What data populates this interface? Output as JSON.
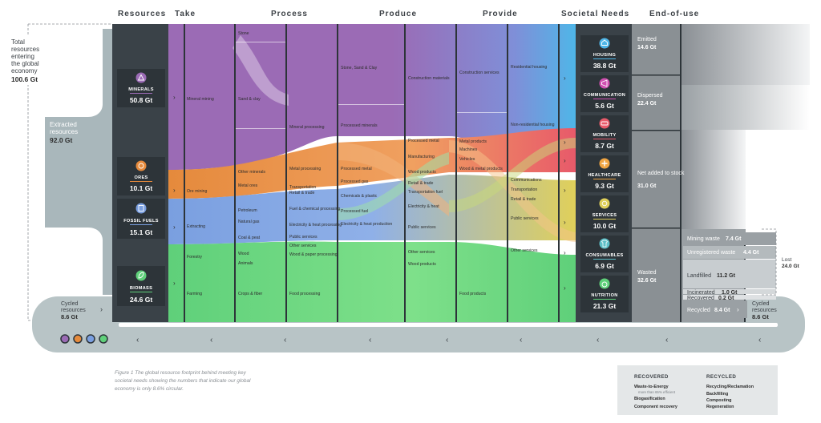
{
  "headers": [
    "Resources",
    "Take",
    "Process",
    "Produce",
    "Provide",
    "Societal Needs",
    "End-of-use"
  ],
  "total": {
    "lines": [
      "Total",
      "resources",
      "entering",
      "the global",
      "economy"
    ],
    "value": "100.6 Gt"
  },
  "extracted": {
    "lines": [
      "Extracted",
      "resources"
    ],
    "value": "92.0 Gt"
  },
  "cycled_left": {
    "lines": [
      "Cycled",
      "resources"
    ],
    "value": "8.6 Gt"
  },
  "cycled_right": {
    "lines": [
      "Cycled",
      "resources"
    ],
    "value": "8.6 Gt"
  },
  "resources": [
    {
      "name": "MINERALS",
      "value": "50.8 Gt",
      "color": "#9b6bb5"
    },
    {
      "name": "ORES",
      "value": "10.1 Gt",
      "color": "#e58a3c"
    },
    {
      "name": "FOSSIL FUELS",
      "value": "15.1 Gt",
      "color": "#7a9fe0"
    },
    {
      "name": "BIOMASS",
      "value": "24.6 Gt",
      "color": "#5fd07a"
    }
  ],
  "take_labels": [
    "Mineral mining",
    "Ore mining",
    "Extracting",
    "Forestry",
    "Farming"
  ],
  "process_inputs": [
    "Stone",
    "Sand & clay",
    "Other minerals",
    "Metal ores",
    "Petroleum",
    "Natural gas",
    "Coal & peat",
    "Wood",
    "Animals",
    "Crops & fiber"
  ],
  "process_labels": [
    "Mineral processing",
    "Metal processing",
    "Transportation",
    "Retail & trade",
    "Fuel & chemical processing",
    "Electricity & heat processing",
    "Public services",
    "Other services",
    "Wood & paper processing",
    "Food processing"
  ],
  "produce_inputs": [
    "Stone, Sand & Clay",
    "Processed minerals",
    "Processed metal",
    "Processed gas",
    "Chemicals & plastic",
    "Processed fuel",
    "Electricity & heat production"
  ],
  "produce_labels": [
    "Construction materials",
    "Processed metal",
    "Manufacturing",
    "Wood products",
    "Retail & trade",
    "Transportation fuel",
    "Electricity & heat",
    "Public services",
    "Other services",
    "Wood products"
  ],
  "provide_inputs": [
    "Construction services",
    "Metal products",
    "Machines",
    "Vehicles",
    "Wood & metal products",
    "Food products"
  ],
  "provide_labels": [
    "Residential housing",
    "Non-residential housing",
    "Communications",
    "Transportation",
    "Retail & trade",
    "Public services",
    "Other services"
  ],
  "needs": [
    {
      "name": "HOUSING",
      "value": "38.8 Gt",
      "color": "#4fb6e8"
    },
    {
      "name": "COMMUNICATION",
      "value": "5.6 Gt",
      "color": "#d04fb0"
    },
    {
      "name": "MOBILITY",
      "value": "8.7 Gt",
      "color": "#e85a6a"
    },
    {
      "name": "HEALTHCARE",
      "value": "9.3 Gt",
      "color": "#f0a542"
    },
    {
      "name": "SERVICES",
      "value": "10.0 Gt",
      "color": "#e0d05a"
    },
    {
      "name": "CONSUMABLES",
      "value": "6.9 Gt",
      "color": "#5ec0c8"
    },
    {
      "name": "NUTRITION",
      "value": "21.3 Gt",
      "color": "#5fd07a"
    }
  ],
  "end_of_use": [
    {
      "label": "Emitted",
      "value": "14.6 Gt"
    },
    {
      "label": "Dispersed",
      "value": "22.4 Gt"
    },
    {
      "label": "Net added to stock",
      "value": "31.0 Gt"
    },
    {
      "label": "Wasted",
      "value": "32.6 Gt"
    }
  ],
  "waste_items": [
    {
      "label": "Mining waste",
      "value": "7.4 Gt"
    },
    {
      "label": "Unregistered waste",
      "value": "4.4 Gt"
    },
    {
      "label": "Landfilled",
      "value": "11.2 Gt"
    },
    {
      "label": "Incinerated",
      "value": "1.0 Gt"
    },
    {
      "label": "Recovered",
      "value": "0.2 Gt"
    },
    {
      "label": "Recycled",
      "value": "8.4 Gt"
    }
  ],
  "lost": {
    "label": "Lost",
    "value": "24.0 Gt"
  },
  "caption": [
    "Figure 1 The global resource footprint behind meeting key",
    "societal needs showing the numbers that indicate our global",
    "economy is only 8.6% circular."
  ],
  "legend": {
    "recovered_title": "RECOVERED",
    "recovered_items": [
      "Waste-to-Energy",
      "Biogasification",
      "Component recovery"
    ],
    "recovered_note": "more than 65% efficient",
    "recycled_title": "RECYCLED",
    "recycled_items": [
      "Recycling/Reclamation",
      "Backfilling",
      "Composting",
      "Regeneration"
    ]
  },
  "arrows": {
    "right": "›",
    "left": "‹"
  },
  "icons": [
    "mountain-icon",
    "ore-icon",
    "fuel-drop-icon",
    "leaf-icon",
    "house-icon",
    "megaphone-icon",
    "car-icon",
    "medical-cross-icon",
    "services-icon",
    "shirt-icon",
    "apple-icon"
  ]
}
